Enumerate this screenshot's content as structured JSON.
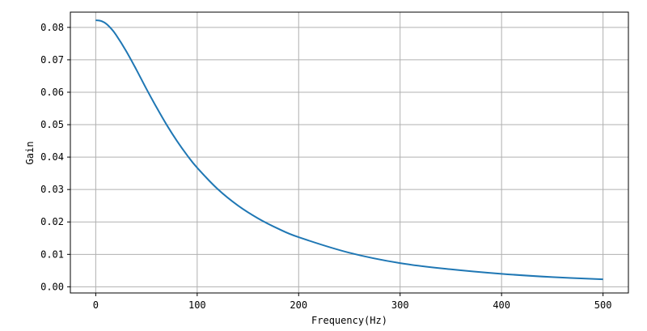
{
  "chart_data": {
    "type": "line",
    "title": "",
    "xlabel": "Frequency(Hz)",
    "ylabel": "Gain",
    "xlim": [
      -25,
      525
    ],
    "ylim": [
      -0.0019,
      0.0847
    ],
    "grid": true,
    "x_ticks": [
      0,
      100,
      200,
      300,
      400,
      500
    ],
    "y_ticks": [
      0.0,
      0.01,
      0.02,
      0.03,
      0.04,
      0.05,
      0.06,
      0.07,
      0.08
    ],
    "x_tick_labels": [
      "0",
      "100",
      "200",
      "300",
      "400",
      "500"
    ],
    "y_tick_labels": [
      "0.00",
      "0.01",
      "0.02",
      "0.03",
      "0.04",
      "0.05",
      "0.06",
      "0.07",
      "0.08"
    ],
    "series": [
      {
        "color": "#1f77b4",
        "x": [
          0,
          5,
          10,
          15,
          20,
          30,
          40,
          50,
          60,
          70,
          80,
          90,
          100,
          120,
          140,
          160,
          180,
          200,
          250,
          300,
          350,
          400,
          450,
          500
        ],
        "y": [
          0.0822,
          0.082,
          0.0812,
          0.0797,
          0.0777,
          0.0727,
          0.067,
          0.061,
          0.0553,
          0.0499,
          0.045,
          0.0406,
          0.0367,
          0.0302,
          0.0251,
          0.0211,
          0.0179,
          0.0153,
          0.0105,
          0.0073,
          0.0054,
          0.004,
          0.003,
          0.0023
        ]
      }
    ]
  }
}
